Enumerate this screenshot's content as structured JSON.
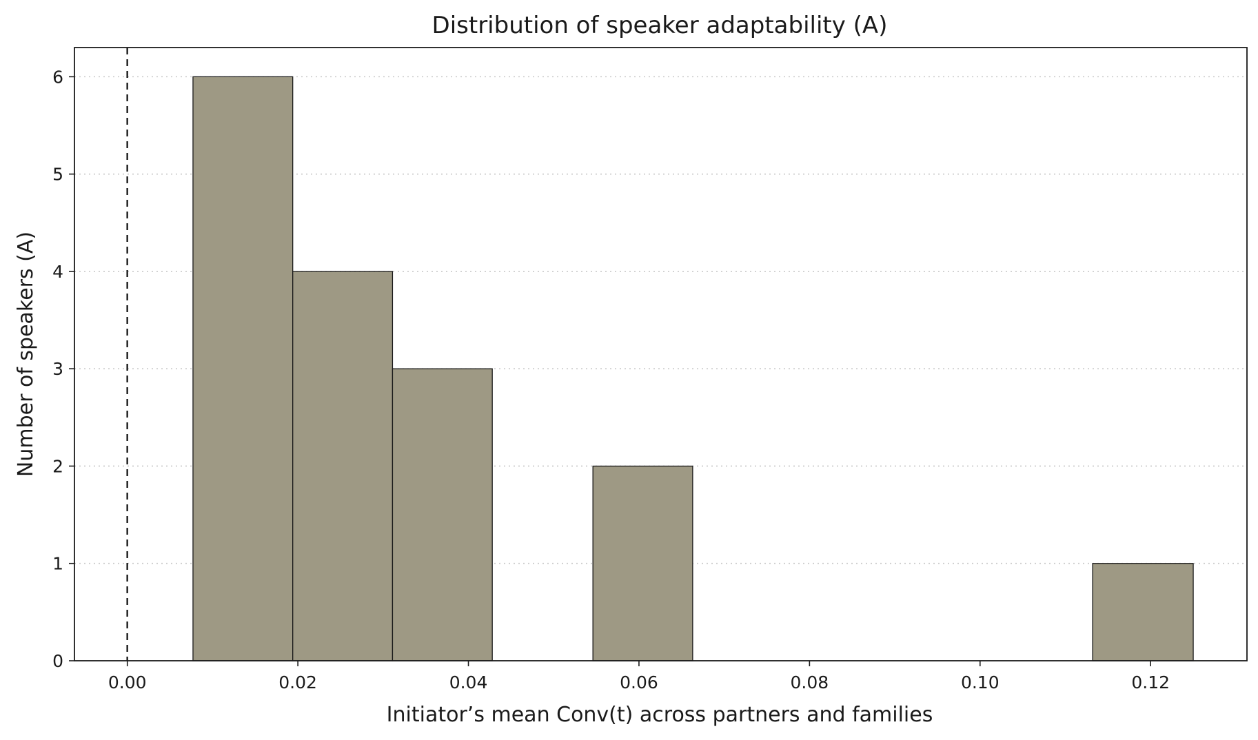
{
  "chart_data": {
    "type": "bar",
    "title": "Distribution of speaker adaptability (A)",
    "xlabel": "Initiator’s mean Conv(t) across partners and families",
    "ylabel": "Number of speakers (A)",
    "xlim": [
      -0.0062,
      0.1313
    ],
    "ylim": [
      0,
      6.3
    ],
    "x_ticks": [
      0.0,
      0.02,
      0.04,
      0.06,
      0.08,
      0.1,
      0.12
    ],
    "x_tick_labels": [
      "0.00",
      "0.02",
      "0.04",
      "0.06",
      "0.08",
      "0.10",
      "0.12"
    ],
    "y_ticks": [
      0,
      1,
      2,
      3,
      4,
      5,
      6
    ],
    "y_tick_labels": [
      "0",
      "1",
      "2",
      "3",
      "4",
      "5",
      "6"
    ],
    "bins": [
      {
        "x0": 0.0077,
        "x1": 0.0194,
        "count": 6
      },
      {
        "x0": 0.0194,
        "x1": 0.0311,
        "count": 4
      },
      {
        "x0": 0.0311,
        "x1": 0.0428,
        "count": 3
      },
      {
        "x0": 0.0428,
        "x1": 0.0546,
        "count": 0
      },
      {
        "x0": 0.0546,
        "x1": 0.0663,
        "count": 2
      },
      {
        "x0": 0.0663,
        "x1": 0.078,
        "count": 0
      },
      {
        "x0": 0.078,
        "x1": 0.0897,
        "count": 0
      },
      {
        "x0": 0.0897,
        "x1": 0.1014,
        "count": 0
      },
      {
        "x0": 0.1014,
        "x1": 0.1132,
        "count": 0
      },
      {
        "x0": 0.1132,
        "x1": 0.125,
        "count": 1
      }
    ],
    "reference_line_x": 0.0,
    "grid": "y-dotted",
    "colors": {
      "bar": "#9e9984",
      "edge": "#1a1a1a",
      "grid": "#c8c8c8"
    }
  }
}
